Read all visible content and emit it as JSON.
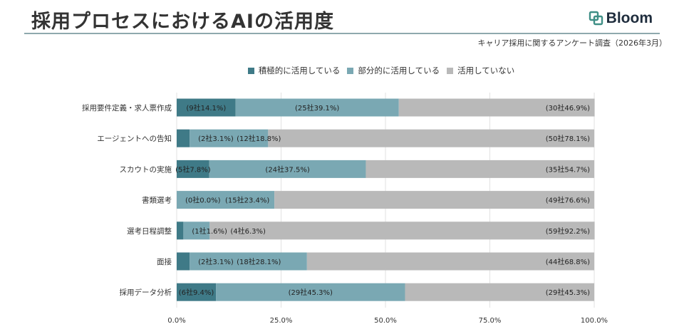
{
  "header": {
    "title": "採用プロセスにおけるAIの活用度",
    "brand": "Bloom",
    "survey_note": "キャリア採用に関するアンケート調査（2026年3月）"
  },
  "colors": {
    "series": [
      "#3f7a87",
      "#7aa8b3",
      "#b9b9b9"
    ],
    "title_rule": "#8fa9ae"
  },
  "chart_data": {
    "type": "bar",
    "orientation": "horizontal",
    "stacked": true,
    "title": "採用プロセスにおけるAIの活用度",
    "categories": [
      "採用要件定義・求人票作成",
      "エージェントへの告知",
      "スカウトの実施",
      "書類選考",
      "選考日程調整",
      "面接",
      "採用データ分析"
    ],
    "series": [
      {
        "name": "積極的に活用している",
        "values": [
          14.1,
          3.1,
          7.8,
          0.0,
          1.6,
          3.1,
          9.4
        ],
        "labels": [
          "(9社14.1%)",
          "(2社3.1%)",
          "(5社7.8%)",
          "(0社0.0%)",
          "(1社1.6%)",
          "(2社3.1%)",
          "(6社9.4%)"
        ]
      },
      {
        "name": "部分的に活用している",
        "values": [
          39.1,
          18.8,
          37.5,
          23.4,
          6.3,
          28.1,
          45.3
        ],
        "labels": [
          "(25社39.1%)",
          "(12社18.8%)",
          "(24社37.5%)",
          "(15社23.4%)",
          "(4社6.3%)",
          "(18社28.1%)",
          "(29社45.3%)"
        ]
      },
      {
        "name": "活用していない",
        "values": [
          46.9,
          78.1,
          54.7,
          76.6,
          92.2,
          68.8,
          45.3
        ],
        "labels": [
          "(30社46.9%)",
          "(50社78.1%)",
          "(35社54.7%)",
          "(49社76.6%)",
          "(59社92.2%)",
          "(44社68.8%)",
          "(29社45.3%)"
        ]
      }
    ],
    "xlim": [
      0,
      100
    ],
    "x_ticks": [
      0,
      25,
      50,
      75,
      100
    ],
    "x_tick_labels": [
      "0.0%",
      "25.0%",
      "50.0%",
      "75.0%",
      "100.0%"
    ],
    "legend_position": "top-center",
    "grid": true
  }
}
